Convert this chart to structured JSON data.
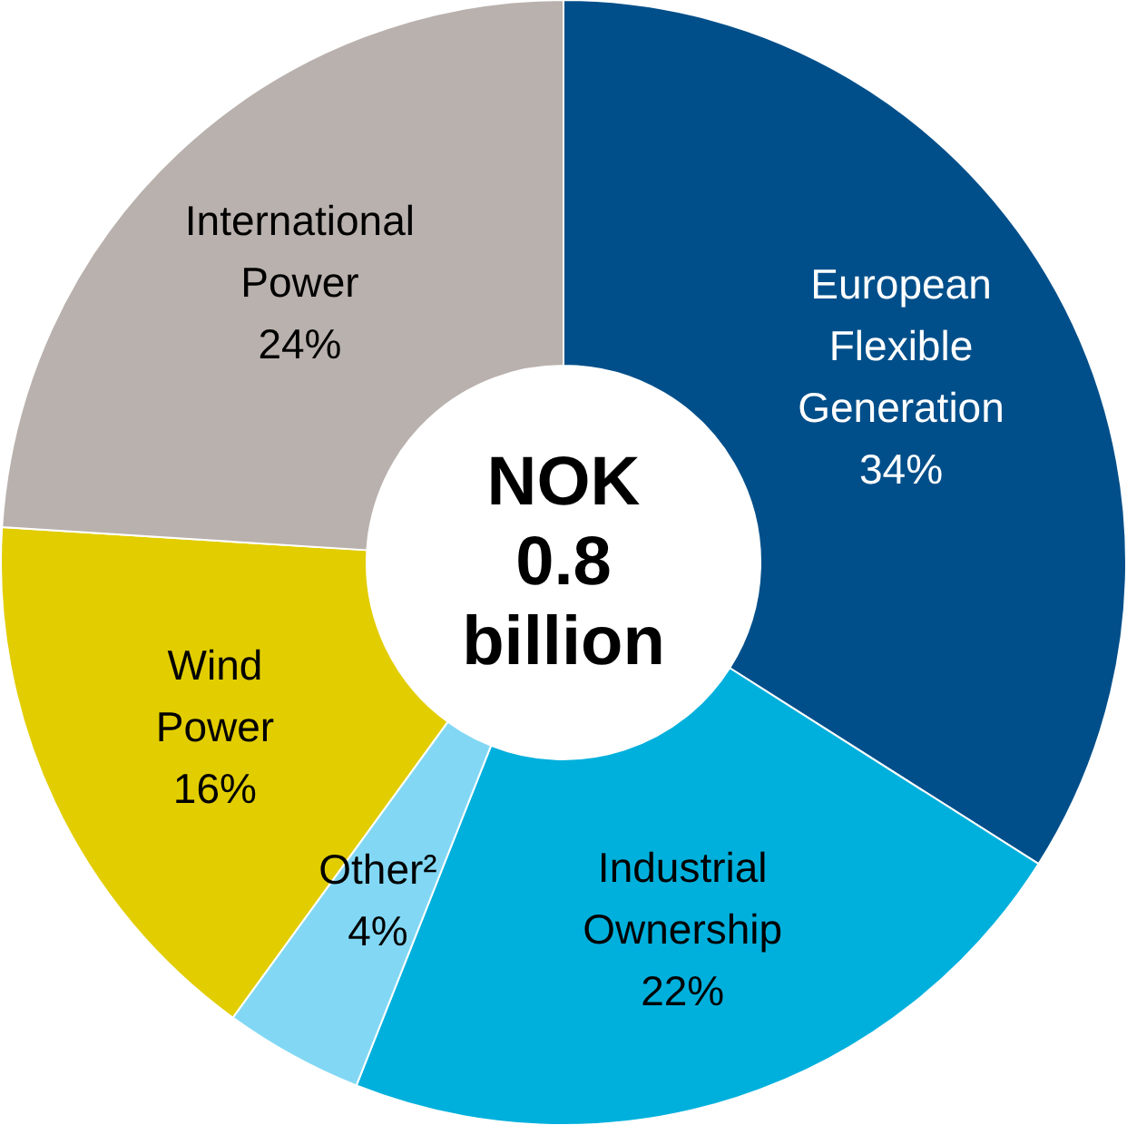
{
  "chart_data": {
    "type": "donut",
    "title": "NOK 0.8 billion",
    "categories": [
      "European Flexible Generation",
      "Industrial Ownership",
      "Other²",
      "Wind Power",
      "International Power"
    ],
    "values": [
      34,
      22,
      4,
      16,
      24
    ],
    "colors": [
      "#004f8a",
      "#00b0dc",
      "#82d8f4",
      "#e2cd00",
      "#b9b1ad"
    ],
    "value_labels": [
      "34%",
      "22%",
      "4%",
      "16%",
      "24%"
    ],
    "legend": false
  }
}
